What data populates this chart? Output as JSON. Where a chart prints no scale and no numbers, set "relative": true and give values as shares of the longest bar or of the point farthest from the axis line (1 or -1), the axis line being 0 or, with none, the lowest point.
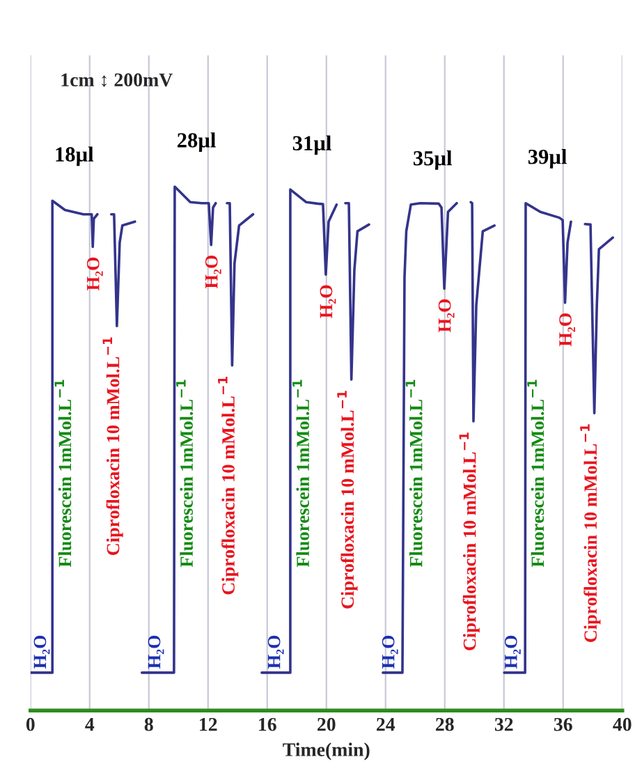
{
  "chart_data": {
    "type": "line",
    "relative": true,
    "xlabel": "Time(min)",
    "xlim": [
      0,
      40
    ],
    "xticks": [
      0,
      4,
      8,
      12,
      16,
      20,
      24,
      28,
      32,
      36,
      40
    ],
    "grid": "x",
    "marker": "none",
    "line_style": "solid",
    "series": [
      {
        "color": "#34348c",
        "x": [
          0,
          1.48,
          1.48,
          2.33,
          3.58,
          4.14,
          4.21,
          4.28,
          4.52,
          5.0,
          5.46,
          5.65,
          5.84,
          6.03,
          6.21,
          7.06,
          7.3,
          7.53,
          9.7,
          9.75,
          10.8,
          11.58,
          12.05,
          12.21,
          12.34,
          12.52,
          12.9,
          13.28,
          13.47,
          13.63,
          13.79,
          14.1,
          15.04,
          15.3,
          15.63,
          17.56,
          17.56,
          18.64,
          19.4,
          19.77,
          19.96,
          20.15,
          20.69,
          21.0,
          21.28,
          21.52,
          21.69,
          21.89,
          22.1,
          22.88,
          23.3,
          23.82,
          25.14,
          25.28,
          25.4,
          25.71,
          26.34,
          27.59,
          27.78,
          27.97,
          28.22,
          28.81,
          29.3,
          29.76,
          29.85,
          29.94,
          30.13,
          30.57,
          31.36,
          31.7,
          32.02,
          33.43,
          33.47,
          34.46,
          35.75,
          35.97,
          36.13,
          36.3,
          36.53,
          37.0,
          37.48,
          37.85,
          38.11,
          38.28,
          38.42,
          39.36
        ],
        "values": [
          0,
          0,
          0.971,
          0.952,
          0.943,
          0.943,
          0.876,
          0.934,
          0.943,
          null,
          0.943,
          0.943,
          0.713,
          0.885,
          0.92,
          0.928,
          null,
          0,
          0,
          1.0,
          0.968,
          0.966,
          0.966,
          0.88,
          0.957,
          0.966,
          null,
          0.966,
          0.966,
          0.632,
          0.842,
          0.92,
          0.943,
          null,
          0,
          0,
          0.994,
          0.968,
          0.965,
          0.964,
          0.819,
          0.928,
          0.963,
          null,
          0.966,
          0.966,
          0.603,
          0.828,
          0.908,
          0.922,
          null,
          0,
          0,
          0.813,
          0.908,
          0.963,
          0.966,
          0.965,
          0.957,
          0.79,
          0.948,
          0.966,
          null,
          0.968,
          0.966,
          0.517,
          0.756,
          0.908,
          0.92,
          null,
          0,
          0,
          0.966,
          0.948,
          0.936,
          0.931,
          0.761,
          0.885,
          0.928,
          null,
          0.923,
          0.922,
          0.534,
          0.756,
          0.871,
          0.895
        ]
      }
    ],
    "annotations": [
      "1cm ↕ 200mV",
      {
        "text": "18µl",
        "x": 1.48,
        "y": 0.971
      },
      {
        "text": "28µl",
        "x": 9.75,
        "y": 1.0
      },
      {
        "text": "31µl",
        "x": 17.56,
        "y": 0.994
      },
      {
        "text": "35µl",
        "x": 25.71,
        "y": 0.963
      },
      {
        "text": "39µl",
        "x": 33.47,
        "y": 0.966
      },
      {
        "text": "H₂O",
        "x": 4.21,
        "y": 0.876
      },
      {
        "text": "H₂O",
        "x": 12.21,
        "y": 0.88
      },
      {
        "text": "H₂O",
        "x": 19.96,
        "y": 0.819
      },
      {
        "text": "H₂O",
        "x": 27.97,
        "y": 0.79
      },
      {
        "text": "H₂O",
        "x": 36.13,
        "y": 0.761
      },
      {
        "text": "H₂O",
        "x": 0.75,
        "y": 0
      },
      {
        "text": "H₂O",
        "x": 8.47,
        "y": 0
      },
      {
        "text": "H₂O",
        "x": 16.57,
        "y": 0
      },
      {
        "text": "H₂O",
        "x": 24.29,
        "y": 0
      },
      {
        "text": "H₂O",
        "x": 32.58,
        "y": 0
      },
      {
        "text": "Fluorescein 1mMol.L$^{−1}$",
        "x": 1.48,
        "y": 0.411
      },
      {
        "text": "Fluorescein 1mMol.L$^{−1}$",
        "x": 9.7,
        "y": 0.411
      },
      {
        "text": "Fluorescein 1mMol.L$^{−1}$",
        "x": 17.56,
        "y": 0.411
      },
      {
        "text": "Fluorescein 1mMol.L$^{−1}$",
        "x": 25.21,
        "y": 0.411
      },
      {
        "text": "Fluorescein 1mMol.L$^{−1}$",
        "x": 33.43,
        "y": 0.411
      },
      {
        "text": "Ciprofloxacin 10 mMol.L$^{−1}$",
        "x": 5.84,
        "y": 0.713
      },
      {
        "text": "Ciprofloxacin 10 mMol.L$^{−1}$",
        "x": 13.63,
        "y": 0.632
      },
      {
        "text": "Ciprofloxacin 10 mMol.L$^{−1}$",
        "x": 21.69,
        "y": 0.603
      },
      {
        "text": "Ciprofloxacin 10 mMol.L$^{−1}$",
        "x": 29.94,
        "y": 0.517
      },
      {
        "text": "Ciprofloxacin 10 mMol.L$^{−1}$",
        "x": 38.11,
        "y": 0.534
      }
    ]
  }
}
